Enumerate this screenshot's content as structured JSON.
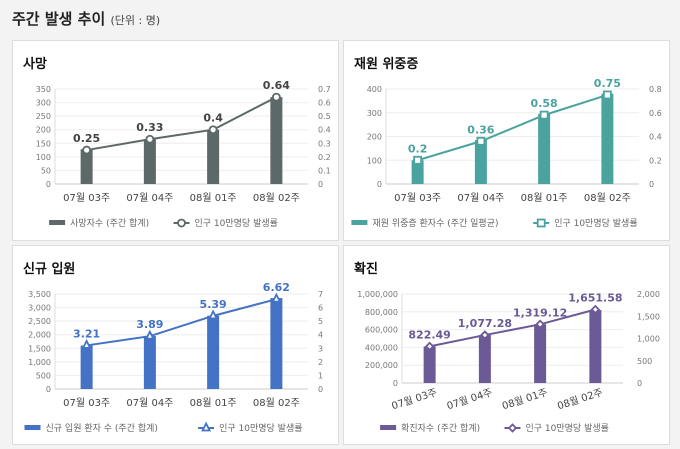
{
  "header": {
    "title": "주간 발생 추이",
    "unit": "(단위 : 명)"
  },
  "chart_data": [
    {
      "type": "bar+line",
      "title": "사망",
      "categories": [
        "07월 03주",
        "07월 04주",
        "08월 01주",
        "08월 02주"
      ],
      "series": [
        {
          "name": "사망자수 (주간 합계)",
          "type": "bar",
          "axis": "left",
          "values": [
            128,
            165,
            200,
            320
          ]
        },
        {
          "name": "인구 10만명당 발생률",
          "type": "line",
          "axis": "right",
          "marker": "circle",
          "values": [
            0.25,
            0.33,
            0.4,
            0.64
          ],
          "labels": [
            "0.25",
            "0.33",
            "0.4",
            "0.64"
          ]
        }
      ],
      "left_axis": {
        "ylim": [
          0,
          350
        ],
        "ticks": [
          "0",
          "50",
          "100",
          "150",
          "200",
          "250",
          "300",
          "350"
        ]
      },
      "right_axis": {
        "ylim": [
          0,
          0.7
        ],
        "ticks": [
          "0",
          "0.1",
          "0.2",
          "0.3",
          "0.4",
          "0.5",
          "0.6",
          "0.7"
        ]
      },
      "color": "#5d6868",
      "grid": true,
      "legend": "bottom"
    },
    {
      "type": "bar+line",
      "title": "재원 위중증",
      "categories": [
        "07월 03주",
        "07월 04주",
        "08월 01주",
        "08월 02주"
      ],
      "series": [
        {
          "name": "재원 위중증 환자수 (주간 일평균)",
          "type": "bar",
          "axis": "left",
          "values": [
            100,
            185,
            295,
            380
          ]
        },
        {
          "name": "인구 10만명당 발생률",
          "type": "line",
          "axis": "right",
          "marker": "square",
          "values": [
            0.2,
            0.36,
            0.58,
            0.75
          ],
          "labels": [
            "0.2",
            "0.36",
            "0.58",
            "0.75"
          ]
        }
      ],
      "left_axis": {
        "ylim": [
          0,
          400
        ],
        "ticks": [
          "0",
          "100",
          "200",
          "300",
          "400"
        ]
      },
      "right_axis": {
        "ylim": [
          0,
          0.8
        ],
        "ticks": [
          "0",
          "0.2",
          "0.4",
          "0.6",
          "0.8"
        ]
      },
      "color": "#4ba3a0",
      "grid": true,
      "legend": "bottom"
    },
    {
      "type": "bar+line",
      "title": "신규 입원",
      "categories": [
        "07월 03주",
        "07월 04주",
        "08월 01주",
        "08월 02주"
      ],
      "series": [
        {
          "name": "신규 입원 환자 수 (주간 합계)",
          "type": "bar",
          "axis": "left",
          "values": [
            1600,
            1950,
            2700,
            3350
          ]
        },
        {
          "name": "인구 10만명당 발생률",
          "type": "line",
          "axis": "right",
          "marker": "triangle",
          "values": [
            3.21,
            3.89,
            5.39,
            6.62
          ],
          "labels": [
            "3.21",
            "3.89",
            "5.39",
            "6.62"
          ]
        }
      ],
      "left_axis": {
        "ylim": [
          0,
          3500
        ],
        "ticks": [
          "0",
          "500",
          "1,000",
          "1,500",
          "2,000",
          "2,500",
          "3,000",
          "3,500"
        ]
      },
      "right_axis": {
        "ylim": [
          0,
          7
        ],
        "ticks": [
          "0",
          "1",
          "2",
          "3",
          "4",
          "5",
          "6",
          "7"
        ]
      },
      "color": "#4472c4",
      "grid": true,
      "legend": "bottom"
    },
    {
      "type": "bar+line",
      "title": "확진",
      "categories": [
        "07월 03주",
        "07월 04주",
        "08월 01주",
        "08월 02주"
      ],
      "series": [
        {
          "name": "확진자수 (주간 합계)",
          "type": "bar",
          "axis": "left",
          "values": [
            410000,
            540000,
            660000,
            820000
          ]
        },
        {
          "name": "인구 10만명당 발생률",
          "type": "line",
          "axis": "right",
          "marker": "diamond",
          "values": [
            822.49,
            1077.28,
            1319.12,
            1651.58
          ],
          "labels": [
            "822.49",
            "1,077.28",
            "1,319.12",
            "1,651.58"
          ]
        }
      ],
      "left_axis": {
        "ylim": [
          0,
          1000000
        ],
        "ticks": [
          "0",
          "200,000",
          "400,000",
          "600,000",
          "800,000",
          "1,000,000"
        ]
      },
      "right_axis": {
        "ylim": [
          0,
          2000
        ],
        "ticks": [
          "0",
          "500",
          "1,000",
          "1,500",
          "2,000"
        ]
      },
      "color": "#6b5a96",
      "grid": true,
      "legend": "bottom",
      "rotated_xlabels": true
    }
  ]
}
